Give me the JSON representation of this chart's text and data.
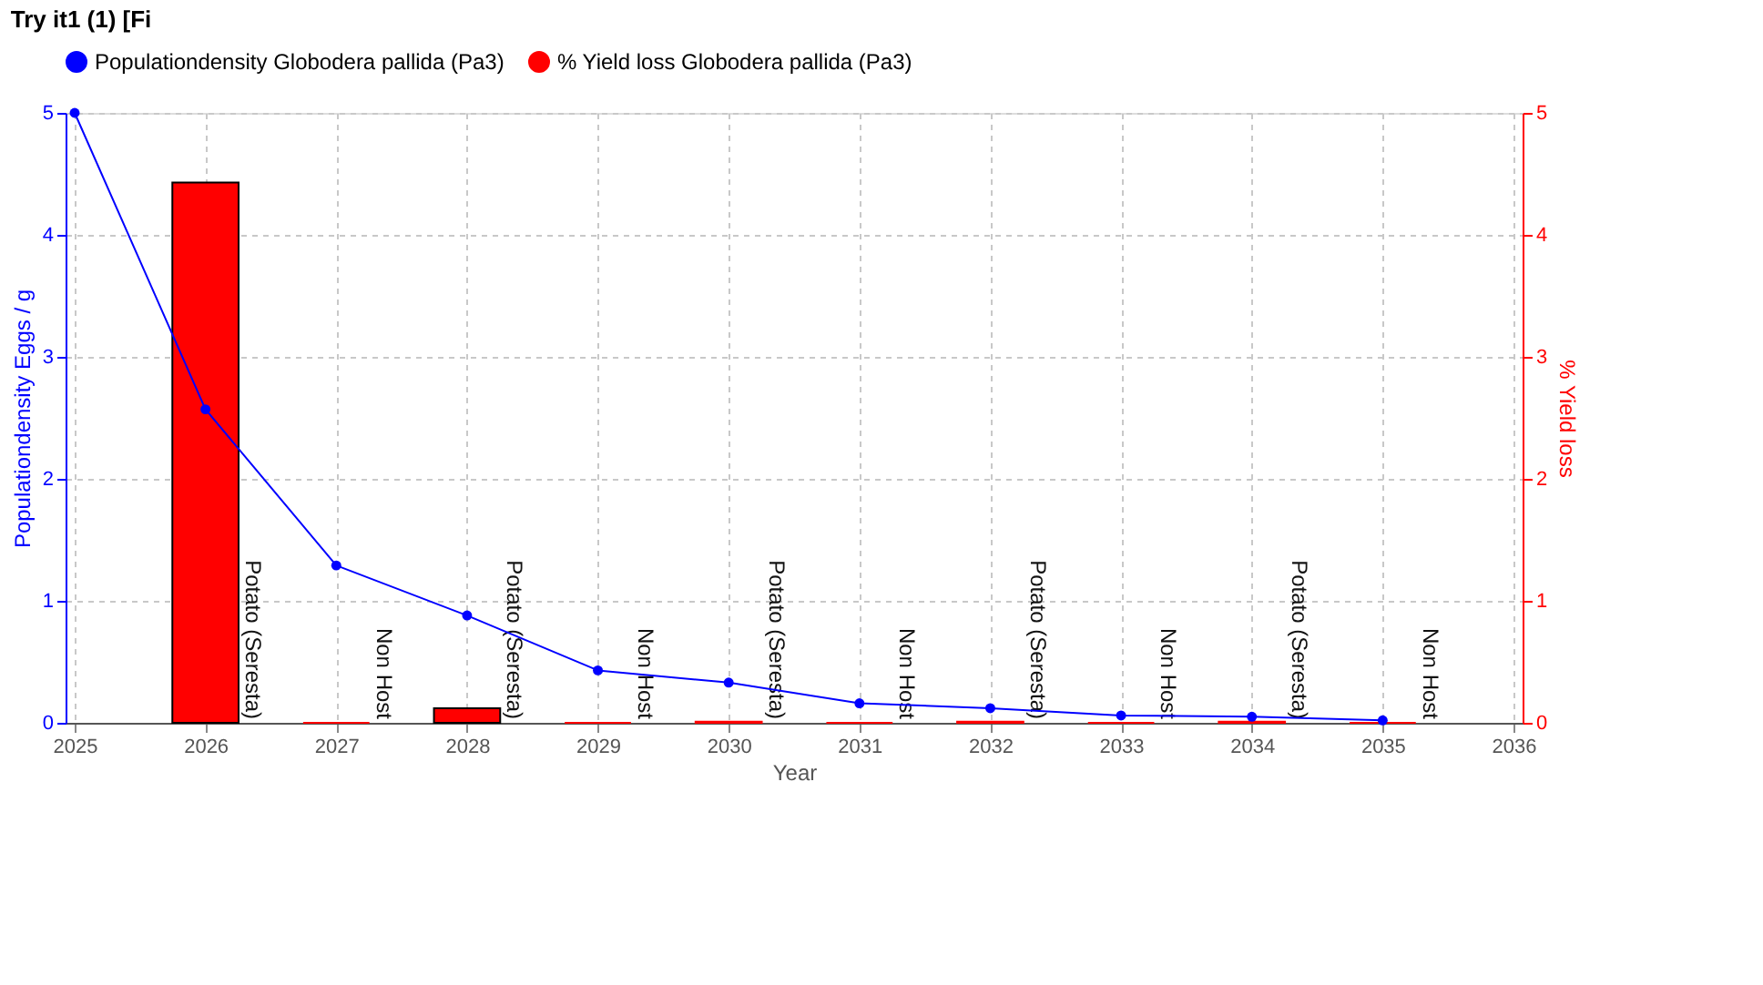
{
  "chart_data": {
    "type": "line",
    "xlabel": "Year",
    "ylabel": "Populationdensity Eggs / g",
    "y2label": "% Yield loss",
    "x": [
      2025,
      2026,
      2027,
      2028,
      2029,
      2030,
      2031,
      2032,
      2033,
      2034,
      2035
    ],
    "series": [
      {
        "name": "Populationdensity Globodera pallida (Pa3)",
        "line_style": "solid",
        "color": "#0000ff",
        "marker": "circle",
        "values": [
          5,
          2.57,
          1.29,
          0.88,
          0.43,
          0.33,
          0.16,
          0.12,
          0.06,
          0.05,
          0.02
        ]
      },
      {
        "name": "% Yield loss Globodera pallida (Pa3)",
        "type": "bar",
        "axis": "y2",
        "color": "#ff0000",
        "values": [
          null,
          4.43,
          0,
          0.12,
          0,
          0.01,
          0,
          0.01,
          0,
          0.01,
          0
        ]
      }
    ],
    "xlim": [
      2025,
      2036
    ],
    "xticks": [
      2025,
      2026,
      2027,
      2028,
      2029,
      2030,
      2031,
      2032,
      2033,
      2034,
      2035,
      2036
    ],
    "ylim": [
      0,
      5
    ],
    "yticks": [
      0,
      1,
      2,
      3,
      4,
      5
    ],
    "y2lim": [
      0,
      5
    ],
    "y2ticks": [
      0,
      1,
      2,
      3,
      4,
      5
    ],
    "grid": true,
    "legend": "top",
    "annotations": [
      "Try it1 (1) [Fi",
      {
        "text": "Potato (Seresta)",
        "x": 2026,
        "y": 0
      },
      {
        "text": "Non Host",
        "x": 2027,
        "y": 0
      },
      {
        "text": "Potato (Seresta)",
        "x": 2028,
        "y": 0
      },
      {
        "text": "Non Host",
        "x": 2029,
        "y": 0
      },
      {
        "text": "Potato (Seresta)",
        "x": 2030,
        "y": 0
      },
      {
        "text": "Non Host",
        "x": 2031,
        "y": 0
      },
      {
        "text": "Potato (Seresta)",
        "x": 2032,
        "y": 0
      },
      {
        "text": "Non Host",
        "x": 2033,
        "y": 0
      },
      {
        "text": "Potato (Seresta)",
        "x": 2034,
        "y": 0
      },
      {
        "text": "Non Host",
        "x": 2035,
        "y": 0
      }
    ]
  }
}
